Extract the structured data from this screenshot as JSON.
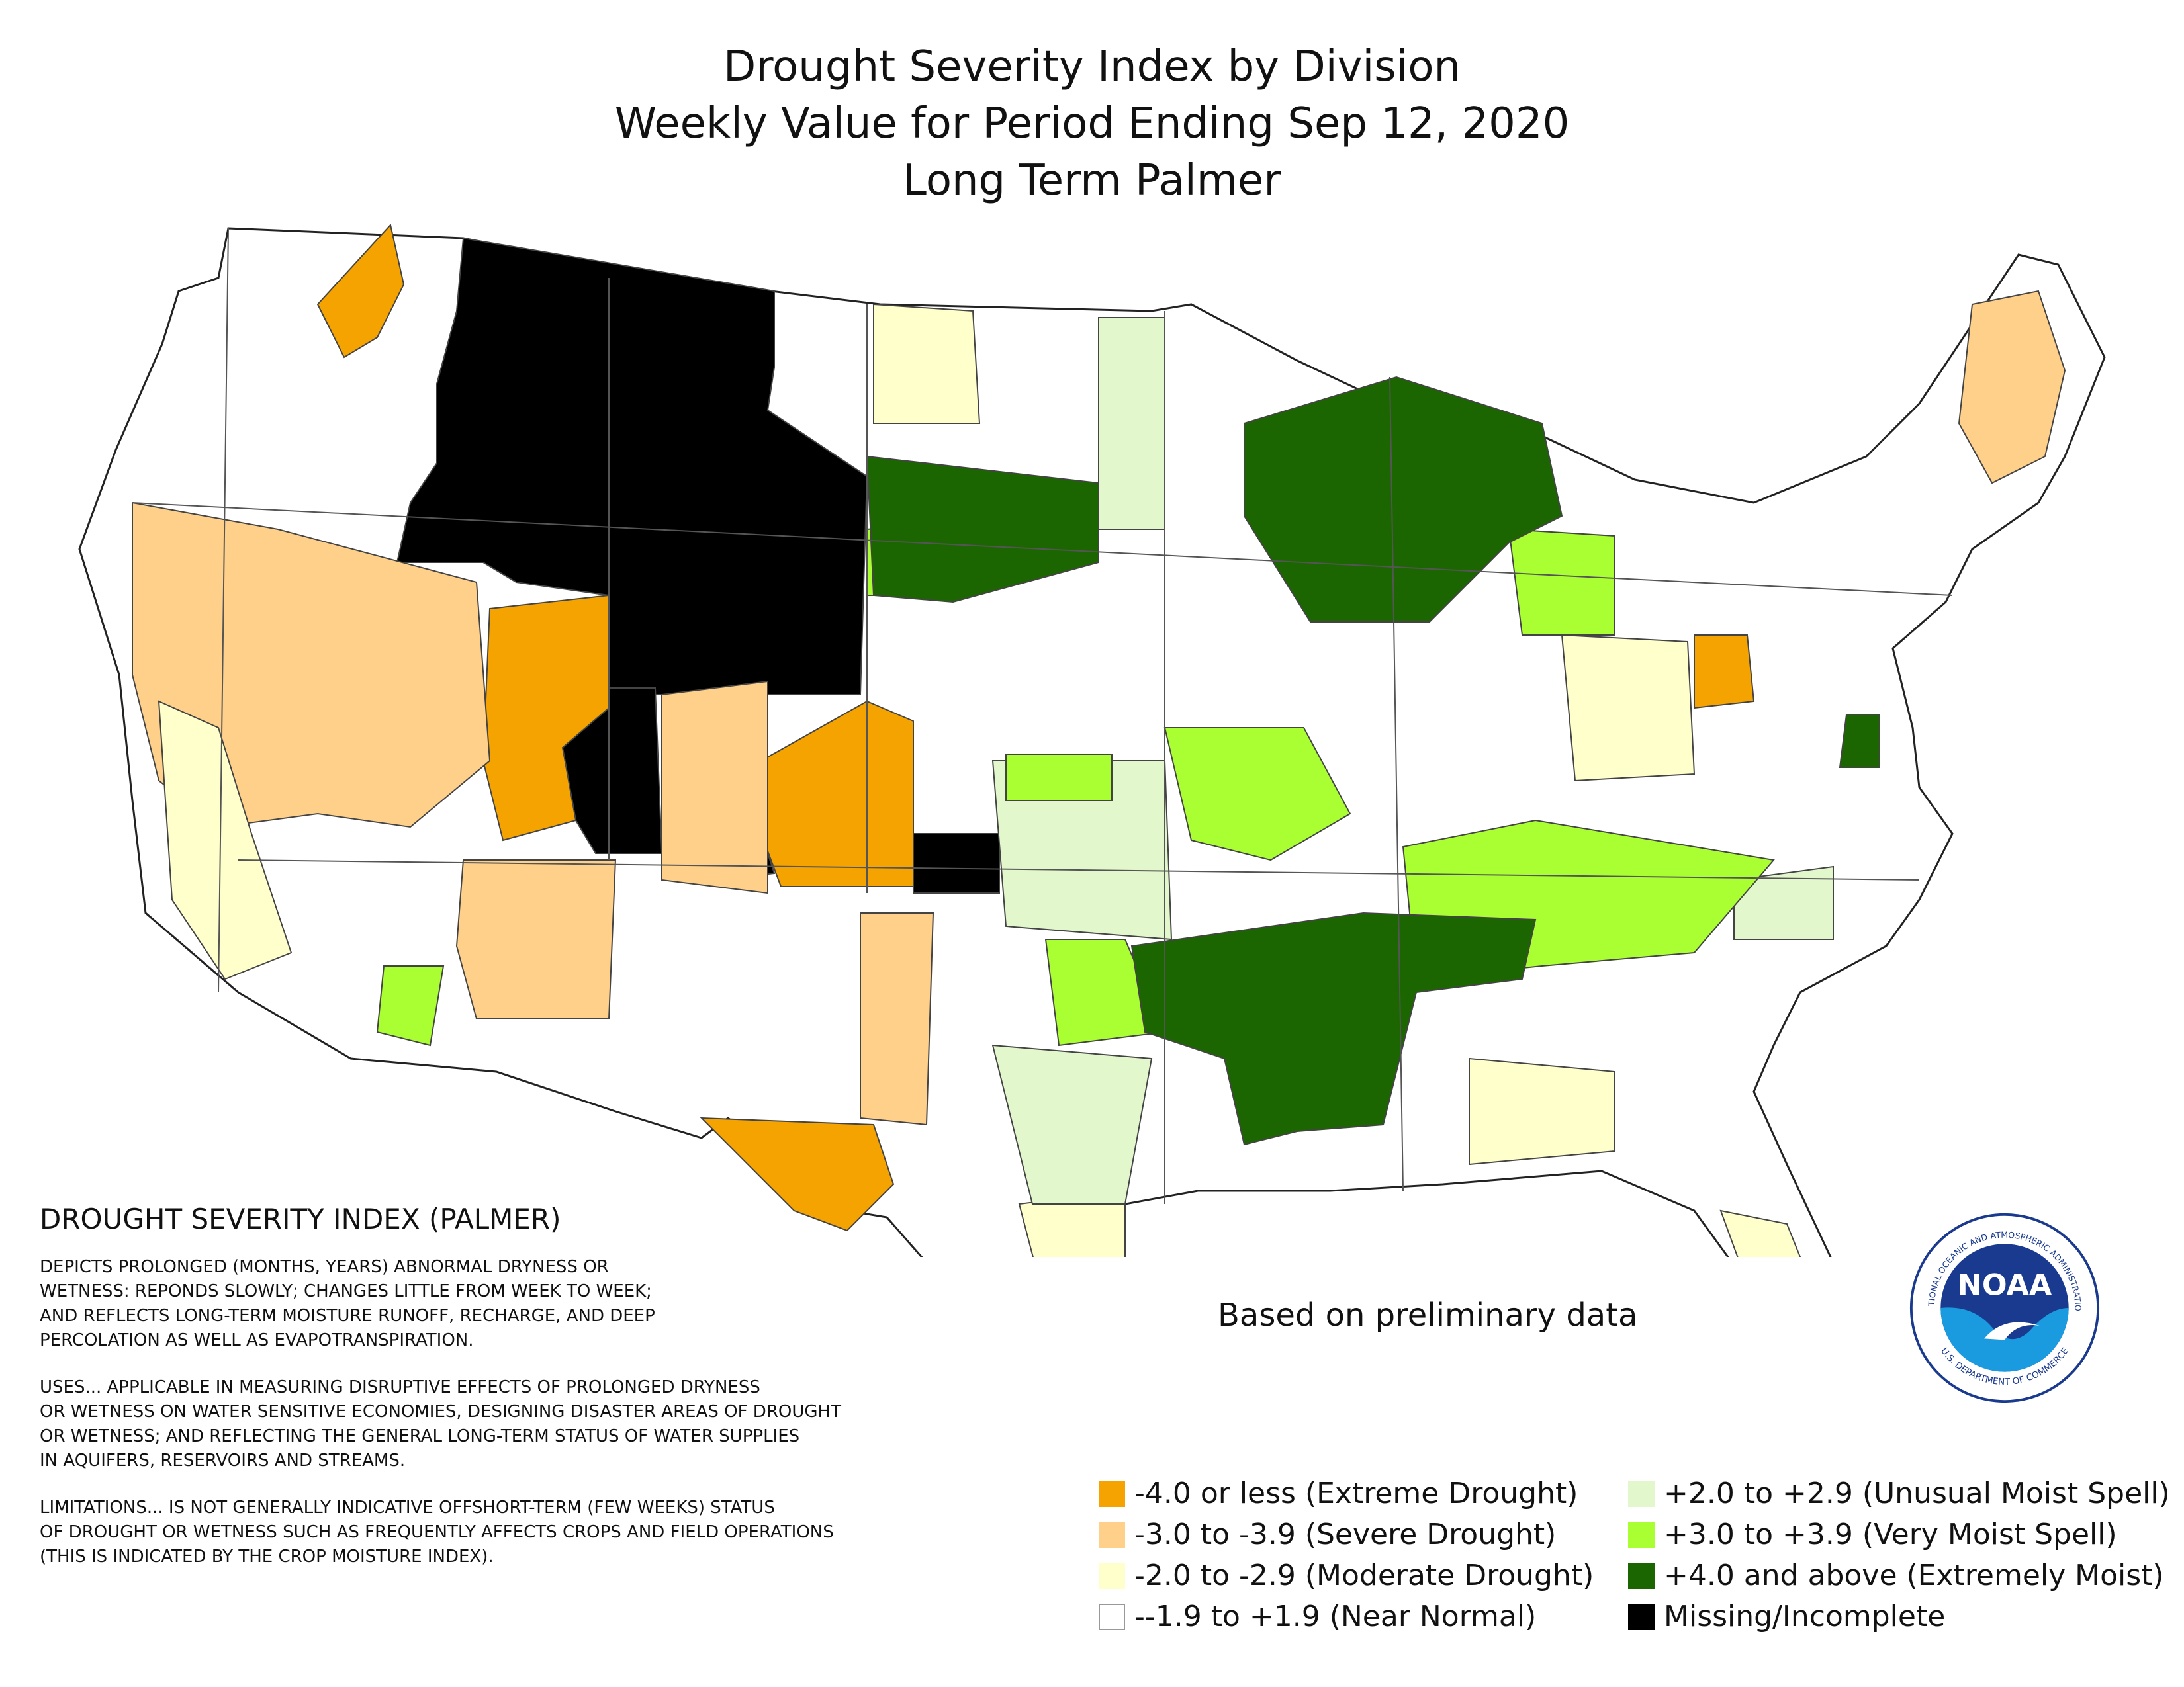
{
  "title": {
    "line1": "Drought Severity Index by Division",
    "line2": "Weekly Value for Period Ending Sep 12, 2020",
    "line3": "Long Term Palmer"
  },
  "map_note": "Based on preliminary data",
  "description": {
    "heading": "DROUGHT SEVERITY INDEX (PALMER)",
    "paragraphs": [
      "DEPICTS PROLONGED (MONTHS, YEARS) ABNORMAL DRYNESS OR\nWETNESS: REPONDS SLOWLY; CHANGES LITTLE FROM WEEK TO WEEK;\nAND REFLECTS LONG-TERM MOISTURE RUNOFF, RECHARGE, AND DEEP\nPERCOLATION AS WELL AS EVAPOTRANSPIRATION.",
      "USES... APPLICABLE IN MEASURING DISRUPTIVE EFFECTS OF PROLONGED DRYNESS\nOR WETNESS ON WATER SENSITIVE ECONOMIES, DESIGNING DISASTER AREAS OF DROUGHT\nOR WETNESS; AND REFLECTING THE GENERAL LONG-TERM STATUS OF WATER SUPPLIES\nIN AQUIFERS, RESERVOIRS AND STREAMS.",
      "LIMITATIONS... IS NOT GENERALLY INDICATIVE OFFSHORT-TERM (FEW WEEKS) STATUS\nOF DROUGHT OR WETNESS SUCH AS FREQUENTLY AFFECTS CROPS AND FIELD OPERATIONS\n(THIS IS INDICATED BY THE CROP MOISTURE INDEX)."
    ]
  },
  "legend": [
    {
      "label": "-4.0 or less (Extreme Drought)",
      "color": "#f5a300"
    },
    {
      "label": "-3.0 to -3.9 (Severe Drought)",
      "color": "#ffd08a"
    },
    {
      "label": "-2.0 to -2.9 (Moderate Drought)",
      "color": "#ffffcc"
    },
    {
      "label": "--1.9 to +1.9 (Near Normal)",
      "color": "#ffffff"
    },
    {
      "label": "+2.0 to +2.9 (Unusual Moist Spell)",
      "color": "#e2f8cc"
    },
    {
      "label": "+3.0 to +3.9 (Very Moist Spell)",
      "color": "#aaff33"
    },
    {
      "label": "+4.0 and above (Extremely Moist)",
      "color": "#1b6600"
    },
    {
      "label": "Missing/Incomplete",
      "color": "#000000"
    }
  ],
  "logo": {
    "text": "NOAA",
    "ring_top": "NATIONAL OCEANIC AND ATMOSPHERIC ADMINISTRATION",
    "ring_bottom": "U.S. DEPARTMENT OF COMMERCE"
  }
}
